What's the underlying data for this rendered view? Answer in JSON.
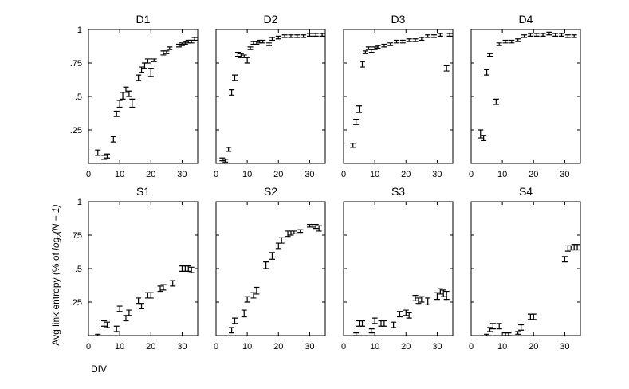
{
  "ylabel_main": "Avg link entropy (% of ",
  "ylabel_math": "log",
  "ylabel_sub": "2",
  "ylabel_tail": "(N − 1)",
  "xlabel": "DIV",
  "chart_data": [
    {
      "type": "scatter",
      "title": "D1",
      "xlim": [
        0,
        35
      ],
      "ylim": [
        0,
        1
      ],
      "xticks": [
        0,
        10,
        20,
        30
      ],
      "yticks": [
        ".25",
        ".5",
        ".75",
        "1"
      ],
      "ytick_values": [
        0.25,
        0.5,
        0.75,
        1
      ],
      "points": [
        {
          "x": 3,
          "y": 0.08,
          "lo": 0.06,
          "hi": 0.1
        },
        {
          "x": 5,
          "y": 0.04,
          "lo": 0.03,
          "hi": 0.06
        },
        {
          "x": 6,
          "y": 0.05,
          "lo": 0.04,
          "hi": 0.07
        },
        {
          "x": 8,
          "y": 0.18,
          "lo": 0.16,
          "hi": 0.2
        },
        {
          "x": 9,
          "y": 0.37,
          "lo": 0.35,
          "hi": 0.39
        },
        {
          "x": 10,
          "y": 0.45,
          "lo": 0.42,
          "hi": 0.47
        },
        {
          "x": 11,
          "y": 0.51,
          "lo": 0.48,
          "hi": 0.53
        },
        {
          "x": 12,
          "y": 0.55,
          "lo": 0.53,
          "hi": 0.57
        },
        {
          "x": 13,
          "y": 0.52,
          "lo": 0.5,
          "hi": 0.54
        },
        {
          "x": 14,
          "y": 0.45,
          "lo": 0.42,
          "hi": 0.48
        },
        {
          "x": 16,
          "y": 0.64,
          "lo": 0.62,
          "hi": 0.66
        },
        {
          "x": 17,
          "y": 0.7,
          "lo": 0.68,
          "hi": 0.72
        },
        {
          "x": 18,
          "y": 0.73,
          "lo": 0.71,
          "hi": 0.75
        },
        {
          "x": 19,
          "y": 0.77,
          "lo": 0.75,
          "hi": 0.78
        },
        {
          "x": 20,
          "y": 0.68,
          "lo": 0.65,
          "hi": 0.71
        },
        {
          "x": 21,
          "y": 0.77,
          "lo": 0.76,
          "hi": 0.78
        },
        {
          "x": 24,
          "y": 0.82,
          "lo": 0.81,
          "hi": 0.84
        },
        {
          "x": 25,
          "y": 0.83,
          "lo": 0.82,
          "hi": 0.84
        },
        {
          "x": 26,
          "y": 0.86,
          "lo": 0.85,
          "hi": 0.87
        },
        {
          "x": 29,
          "y": 0.88,
          "lo": 0.87,
          "hi": 0.89
        },
        {
          "x": 30,
          "y": 0.89,
          "lo": 0.88,
          "hi": 0.9
        },
        {
          "x": 31,
          "y": 0.9,
          "lo": 0.89,
          "hi": 0.91
        },
        {
          "x": 32,
          "y": 0.91,
          "lo": 0.9,
          "hi": 0.92
        },
        {
          "x": 33,
          "y": 0.91,
          "lo": 0.9,
          "hi": 0.92
        },
        {
          "x": 34,
          "y": 0.93,
          "lo": 0.92,
          "hi": 0.94
        }
      ]
    },
    {
      "type": "scatter",
      "title": "D2",
      "xlim": [
        0,
        35
      ],
      "ylim": [
        0,
        1
      ],
      "xticks": [
        0,
        10,
        20,
        30
      ],
      "yticks": [],
      "ytick_values": [
        0.25,
        0.5,
        0.75,
        1
      ],
      "points": [
        {
          "x": 2,
          "y": 0.03,
          "lo": 0.02,
          "hi": 0.04
        },
        {
          "x": 3,
          "y": 0.02,
          "lo": 0.01,
          "hi": 0.03
        },
        {
          "x": 4,
          "y": 0.1,
          "lo": 0.09,
          "hi": 0.12
        },
        {
          "x": 5,
          "y": 0.53,
          "lo": 0.51,
          "hi": 0.55
        },
        {
          "x": 6,
          "y": 0.64,
          "lo": 0.62,
          "hi": 0.66
        },
        {
          "x": 7,
          "y": 0.81,
          "lo": 0.8,
          "hi": 0.83
        },
        {
          "x": 8,
          "y": 0.81,
          "lo": 0.79,
          "hi": 0.82
        },
        {
          "x": 9,
          "y": 0.8,
          "lo": 0.79,
          "hi": 0.81
        },
        {
          "x": 10,
          "y": 0.77,
          "lo": 0.75,
          "hi": 0.79
        },
        {
          "x": 11,
          "y": 0.86,
          "lo": 0.85,
          "hi": 0.87
        },
        {
          "x": 12,
          "y": 0.9,
          "lo": 0.89,
          "hi": 0.91
        },
        {
          "x": 13,
          "y": 0.9,
          "lo": 0.89,
          "hi": 0.91
        },
        {
          "x": 14,
          "y": 0.91,
          "lo": 0.9,
          "hi": 0.92
        },
        {
          "x": 15,
          "y": 0.91,
          "lo": 0.9,
          "hi": 0.92
        },
        {
          "x": 17,
          "y": 0.89,
          "lo": 0.88,
          "hi": 0.9
        },
        {
          "x": 18,
          "y": 0.93,
          "lo": 0.92,
          "hi": 0.94
        },
        {
          "x": 20,
          "y": 0.94,
          "lo": 0.93,
          "hi": 0.95
        },
        {
          "x": 22,
          "y": 0.95,
          "lo": 0.94,
          "hi": 0.96
        },
        {
          "x": 24,
          "y": 0.95,
          "lo": 0.94,
          "hi": 0.96
        },
        {
          "x": 26,
          "y": 0.95,
          "lo": 0.94,
          "hi": 0.96
        },
        {
          "x": 28,
          "y": 0.95,
          "lo": 0.94,
          "hi": 0.96
        },
        {
          "x": 30,
          "y": 0.96,
          "lo": 0.95,
          "hi": 0.97
        },
        {
          "x": 32,
          "y": 0.96,
          "lo": 0.95,
          "hi": 0.97
        },
        {
          "x": 34,
          "y": 0.96,
          "lo": 0.95,
          "hi": 0.97
        }
      ]
    },
    {
      "type": "scatter",
      "title": "D3",
      "xlim": [
        0,
        35
      ],
      "ylim": [
        0,
        1
      ],
      "xticks": [
        0,
        10,
        20,
        30
      ],
      "yticks": [],
      "ytick_values": [
        0.25,
        0.5,
        0.75,
        1
      ],
      "points": [
        {
          "x": 3,
          "y": 0.13,
          "lo": 0.12,
          "hi": 0.15
        },
        {
          "x": 4,
          "y": 0.31,
          "lo": 0.29,
          "hi": 0.33
        },
        {
          "x": 5,
          "y": 0.41,
          "lo": 0.38,
          "hi": 0.43
        },
        {
          "x": 6,
          "y": 0.74,
          "lo": 0.72,
          "hi": 0.76
        },
        {
          "x": 7,
          "y": 0.83,
          "lo": 0.82,
          "hi": 0.84
        },
        {
          "x": 8,
          "y": 0.86,
          "lo": 0.85,
          "hi": 0.87
        },
        {
          "x": 9,
          "y": 0.84,
          "lo": 0.83,
          "hi": 0.85
        },
        {
          "x": 10,
          "y": 0.86,
          "lo": 0.85,
          "hi": 0.87
        },
        {
          "x": 11,
          "y": 0.87,
          "lo": 0.86,
          "hi": 0.88
        },
        {
          "x": 13,
          "y": 0.88,
          "lo": 0.87,
          "hi": 0.89
        },
        {
          "x": 15,
          "y": 0.89,
          "lo": 0.88,
          "hi": 0.9
        },
        {
          "x": 17,
          "y": 0.91,
          "lo": 0.9,
          "hi": 0.92
        },
        {
          "x": 19,
          "y": 0.91,
          "lo": 0.9,
          "hi": 0.92
        },
        {
          "x": 21,
          "y": 0.92,
          "lo": 0.91,
          "hi": 0.93
        },
        {
          "x": 23,
          "y": 0.92,
          "lo": 0.91,
          "hi": 0.93
        },
        {
          "x": 25,
          "y": 0.93,
          "lo": 0.92,
          "hi": 0.94
        },
        {
          "x": 27,
          "y": 0.95,
          "lo": 0.94,
          "hi": 0.96
        },
        {
          "x": 29,
          "y": 0.95,
          "lo": 0.94,
          "hi": 0.96
        },
        {
          "x": 31,
          "y": 0.96,
          "lo": 0.95,
          "hi": 0.97
        },
        {
          "x": 33,
          "y": 0.71,
          "lo": 0.69,
          "hi": 0.73
        },
        {
          "x": 34,
          "y": 0.96,
          "lo": 0.95,
          "hi": 0.97
        }
      ]
    },
    {
      "type": "scatter",
      "title": "D4",
      "xlim": [
        0,
        35
      ],
      "ylim": [
        0,
        1
      ],
      "xticks": [
        0,
        10,
        20,
        30
      ],
      "yticks": [],
      "ytick_values": [
        0.25,
        0.5,
        0.75,
        1
      ],
      "points": [
        {
          "x": 3,
          "y": 0.22,
          "lo": 0.19,
          "hi": 0.25
        },
        {
          "x": 4,
          "y": 0.19,
          "lo": 0.17,
          "hi": 0.21
        },
        {
          "x": 5,
          "y": 0.68,
          "lo": 0.66,
          "hi": 0.7
        },
        {
          "x": 6,
          "y": 0.81,
          "lo": 0.8,
          "hi": 0.82
        },
        {
          "x": 8,
          "y": 0.46,
          "lo": 0.44,
          "hi": 0.48
        },
        {
          "x": 9,
          "y": 0.89,
          "lo": 0.88,
          "hi": 0.9
        },
        {
          "x": 11,
          "y": 0.91,
          "lo": 0.9,
          "hi": 0.92
        },
        {
          "x": 13,
          "y": 0.91,
          "lo": 0.9,
          "hi": 0.92
        },
        {
          "x": 15,
          "y": 0.92,
          "lo": 0.91,
          "hi": 0.93
        },
        {
          "x": 17,
          "y": 0.95,
          "lo": 0.94,
          "hi": 0.96
        },
        {
          "x": 19,
          "y": 0.96,
          "lo": 0.95,
          "hi": 0.97
        },
        {
          "x": 21,
          "y": 0.96,
          "lo": 0.95,
          "hi": 0.97
        },
        {
          "x": 23,
          "y": 0.96,
          "lo": 0.95,
          "hi": 0.97
        },
        {
          "x": 25,
          "y": 0.97,
          "lo": 0.96,
          "hi": 0.98
        },
        {
          "x": 27,
          "y": 0.96,
          "lo": 0.95,
          "hi": 0.97
        },
        {
          "x": 29,
          "y": 0.96,
          "lo": 0.95,
          "hi": 0.97
        },
        {
          "x": 31,
          "y": 0.95,
          "lo": 0.94,
          "hi": 0.96
        },
        {
          "x": 33,
          "y": 0.95,
          "lo": 0.94,
          "hi": 0.96
        }
      ]
    },
    {
      "type": "scatter",
      "title": "S1",
      "xlim": [
        0,
        35
      ],
      "ylim": [
        0,
        1
      ],
      "xticks": [
        0,
        10,
        20,
        30
      ],
      "yticks": [
        ".25",
        ".5",
        ".75",
        "1"
      ],
      "ytick_values": [
        0.25,
        0.5,
        0.75,
        1
      ],
      "points": [
        {
          "x": 3,
          "y": 0.0,
          "lo": 0.0,
          "hi": 0.01
        },
        {
          "x": 5,
          "y": 0.09,
          "lo": 0.07,
          "hi": 0.11
        },
        {
          "x": 6,
          "y": 0.08,
          "lo": 0.06,
          "hi": 0.1
        },
        {
          "x": 9,
          "y": 0.05,
          "lo": 0.03,
          "hi": 0.07
        },
        {
          "x": 10,
          "y": 0.2,
          "lo": 0.18,
          "hi": 0.22
        },
        {
          "x": 12,
          "y": 0.13,
          "lo": 0.11,
          "hi": 0.15
        },
        {
          "x": 13,
          "y": 0.17,
          "lo": 0.15,
          "hi": 0.19
        },
        {
          "x": 16,
          "y": 0.26,
          "lo": 0.24,
          "hi": 0.28
        },
        {
          "x": 17,
          "y": 0.22,
          "lo": 0.2,
          "hi": 0.24
        },
        {
          "x": 19,
          "y": 0.3,
          "lo": 0.28,
          "hi": 0.32
        },
        {
          "x": 20,
          "y": 0.3,
          "lo": 0.28,
          "hi": 0.32
        },
        {
          "x": 23,
          "y": 0.35,
          "lo": 0.33,
          "hi": 0.37
        },
        {
          "x": 24,
          "y": 0.36,
          "lo": 0.34,
          "hi": 0.38
        },
        {
          "x": 27,
          "y": 0.39,
          "lo": 0.37,
          "hi": 0.41
        },
        {
          "x": 30,
          "y": 0.5,
          "lo": 0.48,
          "hi": 0.52
        },
        {
          "x": 31,
          "y": 0.5,
          "lo": 0.48,
          "hi": 0.52
        },
        {
          "x": 32,
          "y": 0.5,
          "lo": 0.48,
          "hi": 0.52
        },
        {
          "x": 33,
          "y": 0.49,
          "lo": 0.47,
          "hi": 0.51
        }
      ]
    },
    {
      "type": "scatter",
      "title": "S2",
      "xlim": [
        0,
        35
      ],
      "ylim": [
        0,
        1
      ],
      "xticks": [
        0,
        10,
        20,
        30
      ],
      "yticks": [],
      "ytick_values": [
        0.25,
        0.5,
        0.75,
        1
      ],
      "points": [
        {
          "x": 5,
          "y": 0.04,
          "lo": 0.02,
          "hi": 0.06
        },
        {
          "x": 6,
          "y": 0.11,
          "lo": 0.09,
          "hi": 0.13
        },
        {
          "x": 9,
          "y": 0.16,
          "lo": 0.14,
          "hi": 0.19
        },
        {
          "x": 10,
          "y": 0.27,
          "lo": 0.25,
          "hi": 0.29
        },
        {
          "x": 12,
          "y": 0.3,
          "lo": 0.28,
          "hi": 0.32
        },
        {
          "x": 13,
          "y": 0.34,
          "lo": 0.31,
          "hi": 0.36
        },
        {
          "x": 16,
          "y": 0.53,
          "lo": 0.5,
          "hi": 0.55
        },
        {
          "x": 18,
          "y": 0.59,
          "lo": 0.57,
          "hi": 0.62
        },
        {
          "x": 20,
          "y": 0.67,
          "lo": 0.65,
          "hi": 0.69
        },
        {
          "x": 21,
          "y": 0.71,
          "lo": 0.69,
          "hi": 0.73
        },
        {
          "x": 23,
          "y": 0.76,
          "lo": 0.74,
          "hi": 0.78
        },
        {
          "x": 24,
          "y": 0.77,
          "lo": 0.75,
          "hi": 0.78
        },
        {
          "x": 25,
          "y": 0.77,
          "lo": 0.76,
          "hi": 0.78
        },
        {
          "x": 27,
          "y": 0.78,
          "lo": 0.77,
          "hi": 0.79
        },
        {
          "x": 30,
          "y": 0.82,
          "lo": 0.81,
          "hi": 0.83
        },
        {
          "x": 31,
          "y": 0.82,
          "lo": 0.81,
          "hi": 0.83
        },
        {
          "x": 32,
          "y": 0.82,
          "lo": 0.8,
          "hi": 0.83
        },
        {
          "x": 33,
          "y": 0.8,
          "lo": 0.78,
          "hi": 0.82
        }
      ]
    },
    {
      "type": "scatter",
      "title": "S3",
      "xlim": [
        0,
        35
      ],
      "ylim": [
        0,
        1
      ],
      "xticks": [
        0,
        10,
        20,
        30
      ],
      "yticks": [],
      "ytick_values": [
        0.25,
        0.5,
        0.75,
        1
      ],
      "points": [
        {
          "x": 4,
          "y": 0.01,
          "lo": 0.0,
          "hi": 0.02
        },
        {
          "x": 5,
          "y": 0.09,
          "lo": 0.07,
          "hi": 0.11
        },
        {
          "x": 6,
          "y": 0.09,
          "lo": 0.07,
          "hi": 0.11
        },
        {
          "x": 9,
          "y": 0.03,
          "lo": 0.02,
          "hi": 0.05
        },
        {
          "x": 10,
          "y": 0.11,
          "lo": 0.09,
          "hi": 0.13
        },
        {
          "x": 12,
          "y": 0.09,
          "lo": 0.07,
          "hi": 0.11
        },
        {
          "x": 13,
          "y": 0.09,
          "lo": 0.07,
          "hi": 0.11
        },
        {
          "x": 16,
          "y": 0.08,
          "lo": 0.06,
          "hi": 0.1
        },
        {
          "x": 18,
          "y": 0.16,
          "lo": 0.14,
          "hi": 0.18
        },
        {
          "x": 20,
          "y": 0.17,
          "lo": 0.15,
          "hi": 0.19
        },
        {
          "x": 21,
          "y": 0.15,
          "lo": 0.13,
          "hi": 0.17
        },
        {
          "x": 23,
          "y": 0.28,
          "lo": 0.26,
          "hi": 0.3
        },
        {
          "x": 24,
          "y": 0.26,
          "lo": 0.24,
          "hi": 0.28
        },
        {
          "x": 25,
          "y": 0.27,
          "lo": 0.25,
          "hi": 0.29
        },
        {
          "x": 27,
          "y": 0.25,
          "lo": 0.23,
          "hi": 0.28
        },
        {
          "x": 30,
          "y": 0.3,
          "lo": 0.27,
          "hi": 0.32
        },
        {
          "x": 31,
          "y": 0.33,
          "lo": 0.31,
          "hi": 0.35
        },
        {
          "x": 32,
          "y": 0.31,
          "lo": 0.29,
          "hi": 0.34
        },
        {
          "x": 33,
          "y": 0.3,
          "lo": 0.27,
          "hi": 0.33
        }
      ]
    },
    {
      "type": "scatter",
      "title": "S4",
      "xlim": [
        0,
        35
      ],
      "ylim": [
        0,
        1
      ],
      "xticks": [
        0,
        10,
        20,
        30
      ],
      "yticks": [],
      "ytick_values": [
        0.25,
        0.5,
        0.75,
        1
      ],
      "points": [
        {
          "x": 5,
          "y": 0.0,
          "lo": 0.0,
          "hi": 0.01
        },
        {
          "x": 6,
          "y": 0.04,
          "lo": 0.03,
          "hi": 0.06
        },
        {
          "x": 7,
          "y": 0.07,
          "lo": 0.05,
          "hi": 0.09
        },
        {
          "x": 9,
          "y": 0.07,
          "lo": 0.05,
          "hi": 0.09
        },
        {
          "x": 11,
          "y": 0.01,
          "lo": 0.0,
          "hi": 0.02
        },
        {
          "x": 12,
          "y": 0.01,
          "lo": 0.0,
          "hi": 0.02
        },
        {
          "x": 15,
          "y": 0.02,
          "lo": 0.01,
          "hi": 0.03
        },
        {
          "x": 16,
          "y": 0.06,
          "lo": 0.04,
          "hi": 0.08
        },
        {
          "x": 19,
          "y": 0.14,
          "lo": 0.12,
          "hi": 0.16
        },
        {
          "x": 20,
          "y": 0.14,
          "lo": 0.12,
          "hi": 0.16
        },
        {
          "x": 30,
          "y": 0.57,
          "lo": 0.55,
          "hi": 0.59
        },
        {
          "x": 31,
          "y": 0.65,
          "lo": 0.63,
          "hi": 0.67
        },
        {
          "x": 32,
          "y": 0.65,
          "lo": 0.64,
          "hi": 0.67
        },
        {
          "x": 33,
          "y": 0.66,
          "lo": 0.64,
          "hi": 0.68
        },
        {
          "x": 34,
          "y": 0.66,
          "lo": 0.64,
          "hi": 0.68
        }
      ]
    }
  ]
}
